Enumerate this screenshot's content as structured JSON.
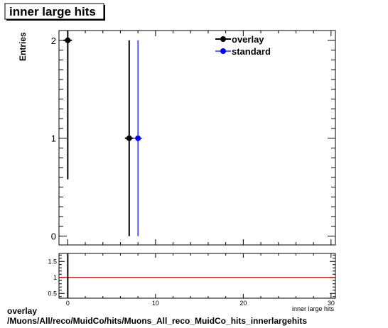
{
  "chart_data": [
    {
      "type": "scatter",
      "title": "inner large hits",
      "xlabel": "inner large hits",
      "ylabel": "Entries",
      "xlim": [
        -1,
        30.5
      ],
      "ylim": [
        -0.09,
        2.1
      ],
      "x_ticks": [
        0,
        10,
        20,
        30
      ],
      "y_ticks": [
        0,
        1,
        2
      ],
      "legend_position": "top-right",
      "series": [
        {
          "name": "overlay",
          "color": "#000000",
          "points": [
            {
              "x": 0,
              "y": 2,
              "err_low": 1.42,
              "err_high": 2.1
            },
            {
              "x": 7,
              "y": 1,
              "err_low": 1,
              "err_high": 1
            }
          ]
        },
        {
          "name": "standard",
          "color": "#0000ff",
          "points": [
            {
              "x": 8,
              "y": 1,
              "err_low": 1,
              "err_high": 1
            }
          ]
        }
      ]
    },
    {
      "type": "line",
      "title": "",
      "xlim": [
        -1,
        30.5
      ],
      "ylim": [
        0.35,
        1.75
      ],
      "x_ticks": [
        0,
        10,
        20,
        30
      ],
      "y_ticks": [
        0.5,
        1,
        1.5
      ],
      "y_tick_labels": [
        "0.5",
        "1",
        "1.5"
      ],
      "reference_line": {
        "y": 1,
        "color": "#cc0000"
      }
    }
  ],
  "footer": {
    "line1": "overlay",
    "line2": "/Muons/All/reco/MuidCo/hits/Muons_All_reco_MuidCo_hits_innerlargehits"
  }
}
